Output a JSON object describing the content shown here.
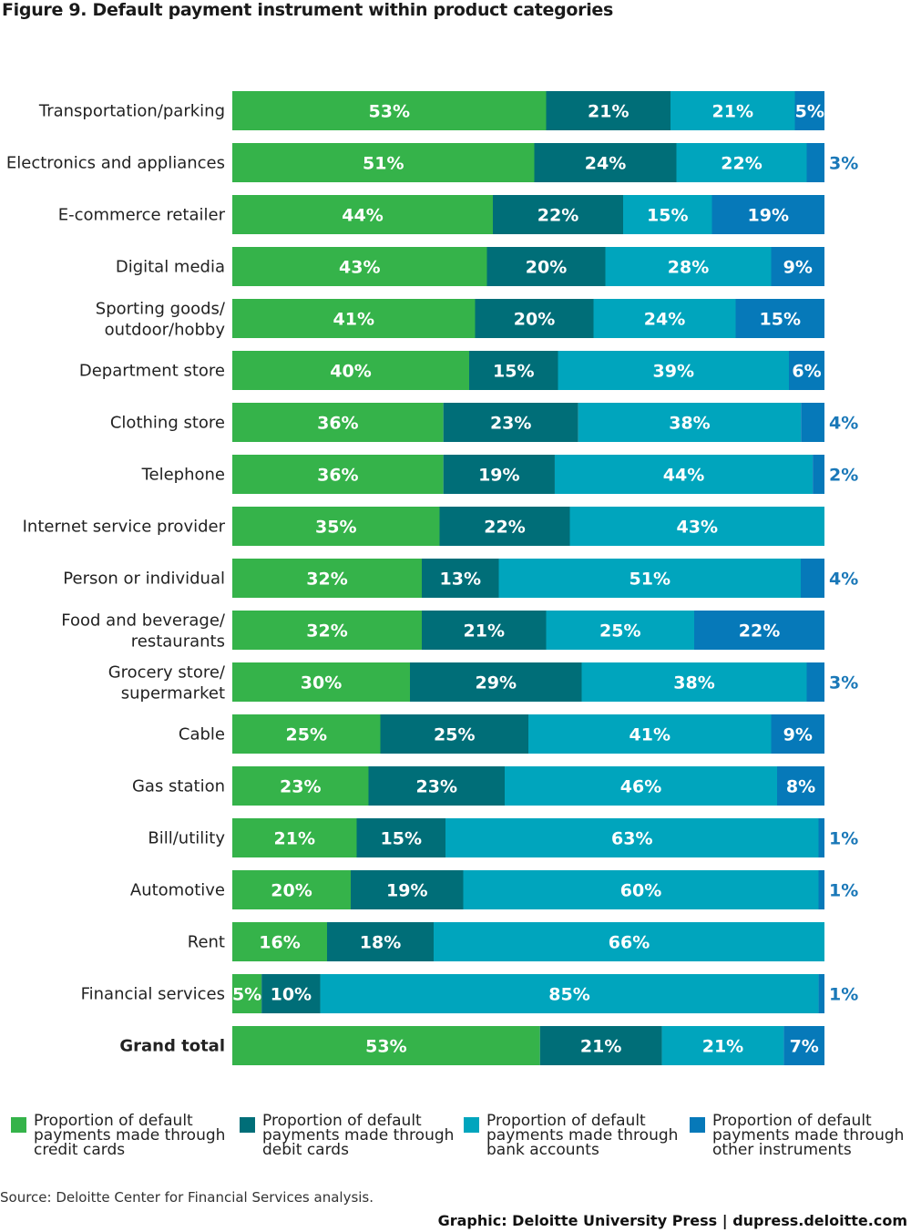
{
  "title": "Figure 9. Default payment instrument within product categories",
  "chart_data": {
    "type": "bar",
    "orientation": "horizontal",
    "stacked": true,
    "title": "Figure 9. Default payment instrument within product categories",
    "xlabel": "",
    "ylabel": "",
    "grid": false,
    "legend_position": "bottom",
    "value_format": "percent",
    "categories": [
      "Transportation/parking",
      "Electronics and appliances",
      "E-commerce retailer",
      "Digital media",
      "Sporting goods/\noutdoor/hobby",
      "Department store",
      "Clothing store",
      "Telephone",
      "Internet service provider",
      "Person or individual",
      "Food and beverage/\nrestaurants",
      "Grocery store/\nsupermarket",
      "Cable",
      "Gas station",
      "Bill/utility",
      "Automotive",
      "Rent",
      "Financial services",
      "Grand total"
    ],
    "bold_categories": [
      "Grand total"
    ],
    "series": [
      {
        "name": "Proportion of default payments made through credit cards",
        "color": "#35b34a",
        "values": [
          53,
          51,
          44,
          43,
          41,
          40,
          36,
          36,
          35,
          32,
          32,
          30,
          25,
          23,
          21,
          20,
          16,
          5,
          53
        ]
      },
      {
        "name": "Proportion of default payments made through debit cards",
        "color": "#006e78",
        "values": [
          21,
          24,
          22,
          20,
          20,
          15,
          23,
          19,
          22,
          13,
          21,
          29,
          25,
          23,
          15,
          19,
          18,
          10,
          21
        ]
      },
      {
        "name": "Proportion of default payments made through bank accounts",
        "color": "#00a5bd",
        "values": [
          21,
          22,
          15,
          28,
          24,
          39,
          38,
          44,
          43,
          51,
          25,
          38,
          41,
          46,
          63,
          60,
          66,
          85,
          21
        ]
      },
      {
        "name": "Proportion of default payments made through other instruments",
        "color": "#0679b9",
        "values": [
          5,
          3,
          19,
          9,
          15,
          6,
          4,
          2,
          0,
          4,
          22,
          3,
          9,
          8,
          1,
          1,
          0,
          1,
          7
        ]
      }
    ]
  },
  "legend": [
    {
      "label": "Proportion of default payments made through credit cards",
      "color": "#35b34a"
    },
    {
      "label": "Proportion of default payments made through debit cards",
      "color": "#006e78"
    },
    {
      "label": "Proportion of default payments made through bank accounts",
      "color": "#00a5bd"
    },
    {
      "label": "Proportion of default payments made through other instruments",
      "color": "#0679b9"
    }
  ],
  "footer": {
    "source": "Source: Deloitte Center for Financial Services analysis.",
    "credit": "Graphic: Deloitte University Press  |  dupress.deloitte.com"
  }
}
